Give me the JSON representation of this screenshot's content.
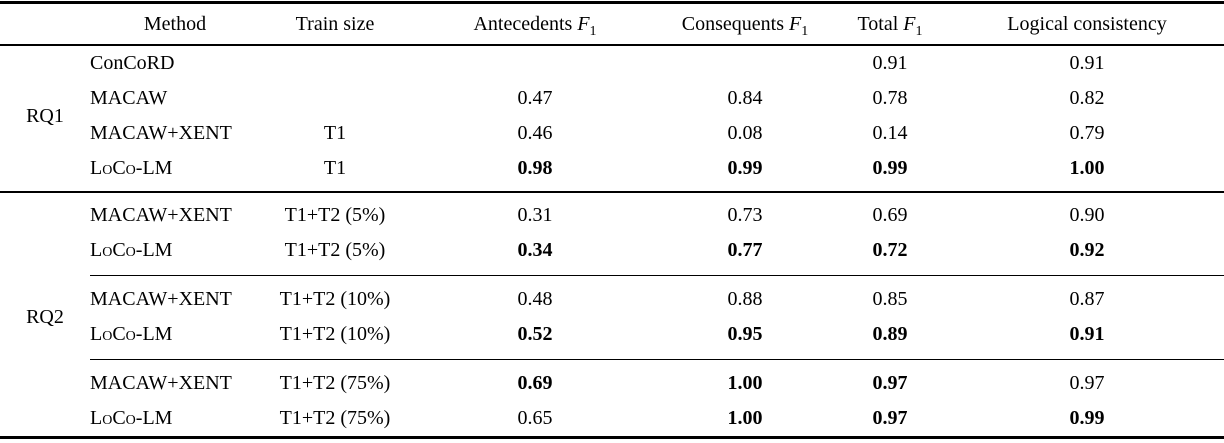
{
  "table": {
    "f1": {
      "letter": "F",
      "sub": "1"
    },
    "columns": [
      {
        "key": "rq",
        "label": "",
        "f1": false
      },
      {
        "key": "method",
        "label": "Method",
        "f1": false
      },
      {
        "key": "train-size",
        "label": "Train size",
        "f1": false
      },
      {
        "key": "antecedents-f1",
        "label": "Antecedents",
        "f1": true
      },
      {
        "key": "consequents-f1",
        "label": "Consequents",
        "f1": true
      },
      {
        "key": "total-f1",
        "label": "Total",
        "f1": true
      },
      {
        "key": "logical-consistency",
        "label": "Logical consistency",
        "f1": false
      }
    ],
    "sections": [
      {
        "group": "RQ1",
        "blocks": [
          {
            "rows": [
              {
                "method": "ConCoRD",
                "sc": false,
                "train": "",
                "values": [
                  {
                    "v": "",
                    "b": false
                  },
                  {
                    "v": "",
                    "b": false
                  },
                  {
                    "v": "0.91",
                    "b": false
                  },
                  {
                    "v": "0.91",
                    "b": false
                  }
                ]
              },
              {
                "method": "MACAW",
                "sc": false,
                "train": "",
                "values": [
                  {
                    "v": "0.47",
                    "b": false
                  },
                  {
                    "v": "0.84",
                    "b": false
                  },
                  {
                    "v": "0.78",
                    "b": false
                  },
                  {
                    "v": "0.82",
                    "b": false
                  }
                ]
              },
              {
                "method": "MACAW+XENT",
                "sc": false,
                "train": "T1",
                "values": [
                  {
                    "v": "0.46",
                    "b": false
                  },
                  {
                    "v": "0.08",
                    "b": false
                  },
                  {
                    "v": "0.14",
                    "b": false
                  },
                  {
                    "v": "0.79",
                    "b": false
                  }
                ]
              },
              {
                "method": "LoCo-LM",
                "sc": true,
                "train": "T1",
                "values": [
                  {
                    "v": "0.98",
                    "b": true
                  },
                  {
                    "v": "0.99",
                    "b": true
                  },
                  {
                    "v": "0.99",
                    "b": true
                  },
                  {
                    "v": "1.00",
                    "b": true
                  }
                ]
              }
            ]
          }
        ]
      },
      {
        "group": "RQ2",
        "blocks": [
          {
            "rows": [
              {
                "method": "MACAW+XENT",
                "sc": false,
                "train": "T1+T2 (5%)",
                "values": [
                  {
                    "v": "0.31",
                    "b": false
                  },
                  {
                    "v": "0.73",
                    "b": false
                  },
                  {
                    "v": "0.69",
                    "b": false
                  },
                  {
                    "v": "0.90",
                    "b": false
                  }
                ]
              },
              {
                "method": "LoCo-LM",
                "sc": true,
                "train": "T1+T2 (5%)",
                "values": [
                  {
                    "v": "0.34",
                    "b": true
                  },
                  {
                    "v": "0.77",
                    "b": true
                  },
                  {
                    "v": "0.72",
                    "b": true
                  },
                  {
                    "v": "0.92",
                    "b": true
                  }
                ]
              }
            ]
          },
          {
            "rows": [
              {
                "method": "MACAW+XENT",
                "sc": false,
                "train": "T1+T2 (10%)",
                "values": [
                  {
                    "v": "0.48",
                    "b": false
                  },
                  {
                    "v": "0.88",
                    "b": false
                  },
                  {
                    "v": "0.85",
                    "b": false
                  },
                  {
                    "v": "0.87",
                    "b": false
                  }
                ]
              },
              {
                "method": "LoCo-LM",
                "sc": true,
                "train": "T1+T2 (10%)",
                "values": [
                  {
                    "v": "0.52",
                    "b": true
                  },
                  {
                    "v": "0.95",
                    "b": true
                  },
                  {
                    "v": "0.89",
                    "b": true
                  },
                  {
                    "v": "0.91",
                    "b": true
                  }
                ]
              }
            ]
          },
          {
            "rows": [
              {
                "method": "MACAW+XENT",
                "sc": false,
                "train": "T1+T2 (75%)",
                "values": [
                  {
                    "v": "0.69",
                    "b": true
                  },
                  {
                    "v": "1.00",
                    "b": true
                  },
                  {
                    "v": "0.97",
                    "b": true
                  },
                  {
                    "v": "0.97",
                    "b": false
                  }
                ]
              },
              {
                "method": "LoCo-LM",
                "sc": true,
                "train": "T1+T2 (75%)",
                "values": [
                  {
                    "v": "0.65",
                    "b": false
                  },
                  {
                    "v": "1.00",
                    "b": true
                  },
                  {
                    "v": "0.97",
                    "b": true
                  },
                  {
                    "v": "0.99",
                    "b": true
                  }
                ]
              }
            ]
          }
        ]
      }
    ]
  }
}
